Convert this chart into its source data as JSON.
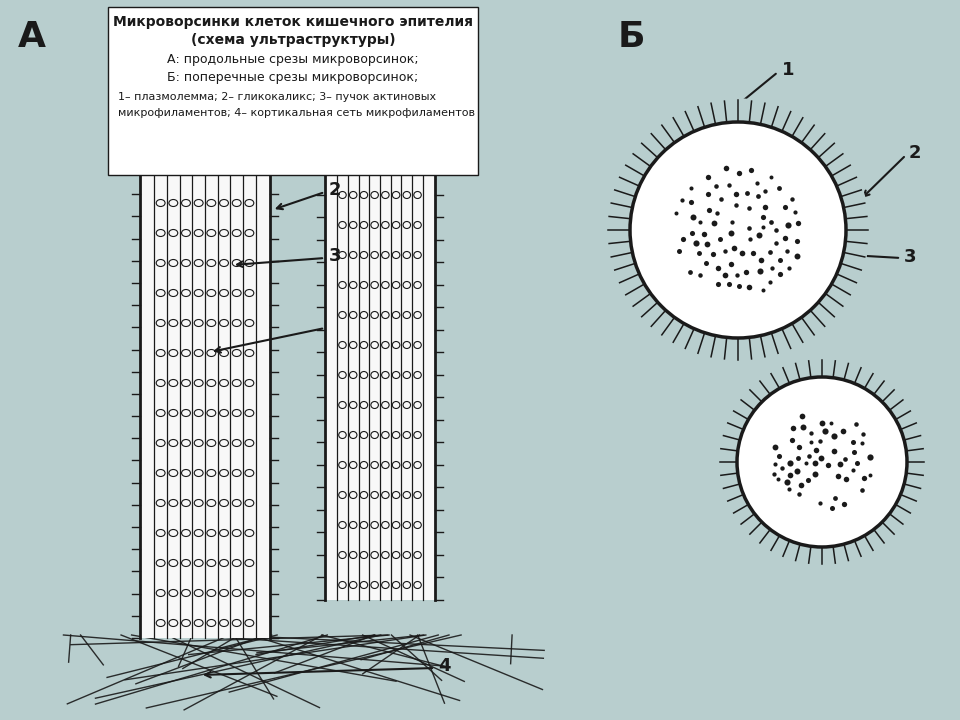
{
  "bg_color": "#b8cece",
  "white_box_color": "#ffffff",
  "title_line1": "Микроворсинки клеток кишечного эпителия",
  "title_line2": "(схема ультраструктуры)",
  "subtitle_line1": "А: продольные срезы микроворсинок;",
  "subtitle_line2": "Б: поперечные срезы микроворсинок;",
  "legend_line1": "1– плазмолемма; 2– гликокаликс; 3– пучок актиновых",
  "legend_line2": "микрофиламентов; 4– кортикальная сеть микрофиламентов",
  "label_A": "А",
  "label_B": "Б",
  "draw_color": "#1a1a1a",
  "fill_white": "#f8f8f8",
  "tip_stipple_color": "#aaaaaa",
  "dot_color": "#1a1a1a"
}
